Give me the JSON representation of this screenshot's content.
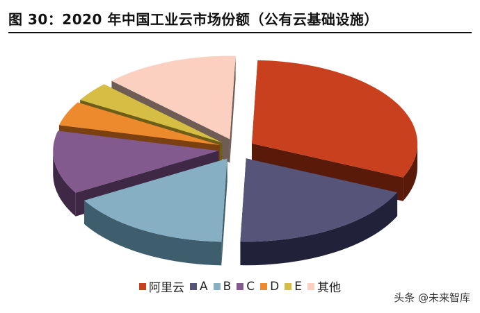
{
  "title": "图 30：2020 年中国工业云市场份额（公有云基础设施）",
  "watermark": "头条 @未来智库",
  "chart_data": {
    "type": "pie",
    "style": "3d-exploded",
    "legend_position": "bottom",
    "slices": [
      {
        "name": "阿里云",
        "value": 33,
        "color": "#C8401E",
        "side_color": "#5A1A0A"
      },
      {
        "name": "A",
        "value": 20,
        "color": "#565478",
        "side_color": "#22213A"
      },
      {
        "name": "B",
        "value": 17,
        "color": "#86AFC4",
        "side_color": "#3E5E6E"
      },
      {
        "name": "C",
        "value": 13,
        "color": "#835A8E",
        "side_color": "#3E2846"
      },
      {
        "name": "D",
        "value": 5,
        "color": "#EE8A2E",
        "side_color": "#7A4010"
      },
      {
        "name": "E",
        "value": 4,
        "color": "#D6BE45",
        "side_color": "#6C5E18"
      },
      {
        "name": "其他",
        "value": 14,
        "color": "#FBD0C0",
        "side_color": "#6E5C55"
      }
    ]
  }
}
